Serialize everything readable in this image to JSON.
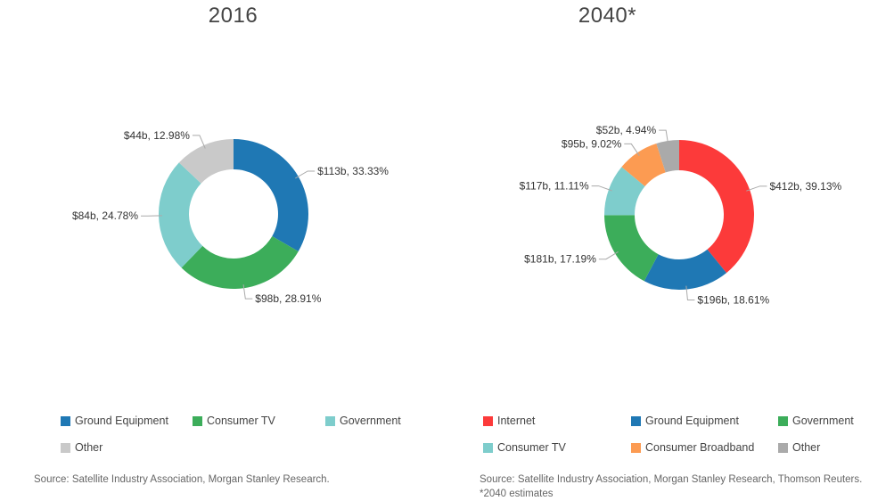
{
  "chart_data": [
    {
      "type": "pie",
      "variant": "donut",
      "title": "2016",
      "slices": [
        {
          "name": "Ground Equipment",
          "value": 113,
          "label": "$113b, 33.33%",
          "color": "#1f78b4"
        },
        {
          "name": "Consumer TV",
          "value": 98,
          "label": "$98b, 28.91%",
          "color": "#3cad5a"
        },
        {
          "name": "Government",
          "value": 84,
          "label": "$84b, 24.78%",
          "color": "#7ecdcc"
        },
        {
          "name": "Other",
          "value": 44,
          "label": "$44b, 12.98%",
          "color": "#c9c9c9"
        }
      ],
      "legend": [
        {
          "name": "Ground Equipment",
          "color": "#1f78b4"
        },
        {
          "name": "Consumer TV",
          "color": "#3cad5a"
        },
        {
          "name": "Government",
          "color": "#7ecdcc"
        },
        {
          "name": "Other",
          "color": "#c9c9c9"
        }
      ],
      "source": "Source: Satellite Industry Association, Morgan Stanley Research."
    },
    {
      "type": "pie",
      "variant": "donut",
      "title": "2040*",
      "slices": [
        {
          "name": "Internet",
          "value": 412,
          "label": "$412b, 39.13%",
          "color": "#fc3a3a"
        },
        {
          "name": "Ground Equipment",
          "value": 196,
          "label": "$196b, 18.61%",
          "color": "#1f78b4"
        },
        {
          "name": "Government",
          "value": 181,
          "label": "$181b, 17.19%",
          "color": "#3cad5a"
        },
        {
          "name": "Consumer TV",
          "value": 117,
          "label": "$117b, 11.11%",
          "color": "#7ecdcc"
        },
        {
          "name": "Consumer Broadband",
          "value": 95,
          "label": "$95b, 9.02%",
          "color": "#fc9b52"
        },
        {
          "name": "Other",
          "value": 52,
          "label": "$52b, 4.94%",
          "color": "#aaaaaa"
        }
      ],
      "legend": [
        {
          "name": "Internet",
          "color": "#fc3a3a"
        },
        {
          "name": "Ground Equipment",
          "color": "#1f78b4"
        },
        {
          "name": "Government",
          "color": "#3cad5a"
        },
        {
          "name": "Consumer TV",
          "color": "#7ecdcc"
        },
        {
          "name": "Consumer Broadband",
          "color": "#fc9b52"
        },
        {
          "name": "Other",
          "color": "#aaaaaa"
        }
      ],
      "source": "Source: Satellite Industry Association, Morgan Stanley Research, Thomson Reuters. *2040 estimates"
    }
  ]
}
